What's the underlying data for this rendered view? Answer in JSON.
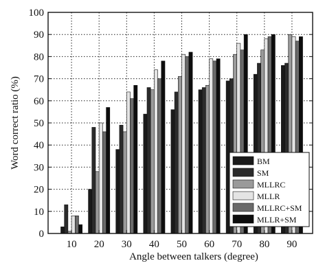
{
  "chart_data": {
    "type": "bar",
    "title": "",
    "xlabel": "Angle between talkers (degree)",
    "ylabel": "Word correct ratio (%)",
    "categories": [
      "10",
      "20",
      "30",
      "40",
      "50",
      "60",
      "70",
      "80",
      "90"
    ],
    "ylim": [
      0,
      100
    ],
    "yticks": [
      "0",
      "10",
      "20",
      "30",
      "40",
      "50",
      "60",
      "70",
      "80",
      "90",
      "100"
    ],
    "grid": true,
    "legend_position": "bottom-right",
    "series": [
      {
        "name": "BM",
        "color": "#1a1a1a",
        "values": [
          3,
          20,
          38,
          54,
          56,
          65,
          69,
          72,
          76
        ]
      },
      {
        "name": "SM",
        "color": "#2b2b2b",
        "values": [
          13,
          48,
          49,
          66,
          64,
          66,
          70,
          77,
          77
        ]
      },
      {
        "name": "MLLRC",
        "color": "#9a9a9a",
        "values": [
          1,
          28,
          46,
          65,
          71,
          67,
          81,
          83,
          90
        ]
      },
      {
        "name": "MLLR",
        "color": "#e4e4e4",
        "values": [
          8,
          50,
          64,
          74,
          81,
          79,
          86,
          88,
          89
        ]
      },
      {
        "name": "MLLRC+SM",
        "color": "#6a6a6a",
        "values": [
          8,
          46,
          61,
          70,
          80,
          78,
          83,
          89,
          87
        ]
      },
      {
        "name": "MLLR+SM",
        "color": "#0d0d0d",
        "values": [
          4,
          57,
          67,
          78,
          82,
          79,
          90,
          90,
          89
        ]
      }
    ]
  }
}
